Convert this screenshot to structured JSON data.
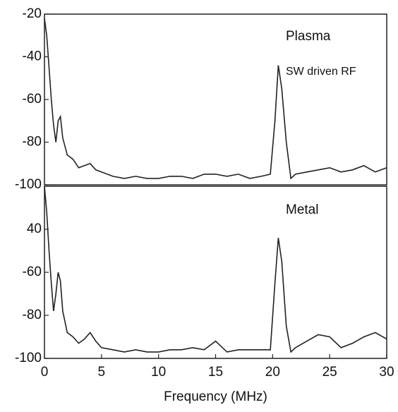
{
  "chart_data": [
    {
      "type": "line",
      "annotations": [
        "Plasma",
        "SW driven RF"
      ],
      "x": [
        0,
        0.2,
        0.4,
        0.6,
        0.8,
        1.0,
        1.2,
        1.4,
        1.6,
        2,
        2.5,
        3,
        3.5,
        4,
        4.5,
        5,
        6,
        7,
        8,
        9,
        10,
        11,
        12,
        13,
        14,
        15,
        16,
        17,
        18,
        19,
        19.8,
        20.2,
        20.5,
        20.8,
        21.2,
        21.6,
        22,
        23,
        24,
        25,
        26,
        27,
        28,
        29,
        30
      ],
      "series": [
        {
          "color": "#222222",
          "values": [
            -22,
            -30,
            -45,
            -60,
            -72,
            -80,
            -70,
            -68,
            -78,
            -86,
            -88,
            -92,
            -91,
            -90,
            -93,
            -94,
            -96,
            -97,
            -96,
            -97,
            -97,
            -96,
            -96,
            -97,
            -95,
            -95,
            -96,
            -95,
            -97,
            -96,
            -95,
            -70,
            -44,
            -55,
            -80,
            -97,
            -95,
            -94,
            -93,
            -92,
            -94,
            -93,
            -91,
            -94,
            -92
          ]
        }
      ],
      "xlim": [
        0,
        30
      ],
      "ylim": [
        -100,
        -20
      ],
      "yticks": [
        -20,
        -40,
        -60,
        -80,
        -100
      ]
    },
    {
      "type": "line",
      "annotations": [
        "Metal"
      ],
      "xlabel": "Frequency (MHz)",
      "x": [
        0,
        0.2,
        0.4,
        0.6,
        0.8,
        1.0,
        1.2,
        1.4,
        1.6,
        2,
        2.5,
        3,
        3.5,
        4,
        4.5,
        5,
        6,
        7,
        8,
        9,
        10,
        11,
        12,
        13,
        14,
        15,
        16,
        17,
        18,
        19,
        19.8,
        20.2,
        20.5,
        20.8,
        21.2,
        21.6,
        22,
        23,
        24,
        25,
        26,
        27,
        28,
        29,
        30
      ],
      "series": [
        {
          "color": "#222222",
          "values": [
            -20,
            -32,
            -50,
            -65,
            -78,
            -70,
            -60,
            -64,
            -78,
            -88,
            -90,
            -93,
            -91,
            -88,
            -92,
            -95,
            -96,
            -97,
            -96,
            -97,
            -97,
            -96,
            -96,
            -95,
            -96,
            -92,
            -97,
            -96,
            -96,
            -96,
            -96,
            -65,
            -44,
            -55,
            -85,
            -97,
            -95,
            -92,
            -89,
            -90,
            -95,
            -93,
            -90,
            -88,
            -91
          ]
        }
      ],
      "xlim": [
        0,
        30
      ],
      "ylim": [
        -100,
        -20
      ],
      "xticks": [
        0,
        5,
        10,
        15,
        20,
        25,
        30
      ],
      "yticks": [
        {
          "value": -40,
          "label": "40"
        },
        -60,
        -80,
        -100
      ]
    }
  ]
}
